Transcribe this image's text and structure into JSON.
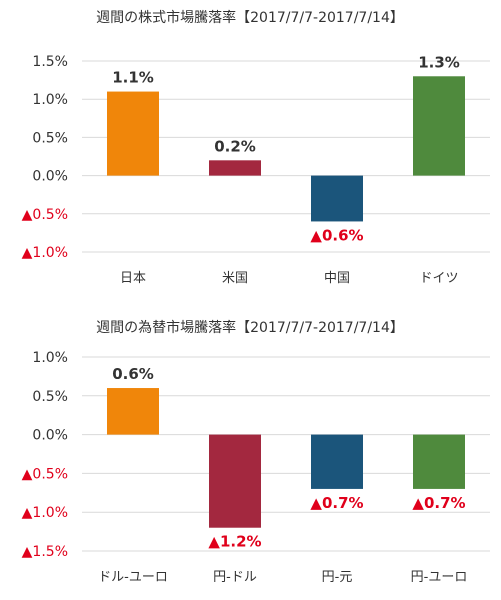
{
  "chart_data": [
    {
      "type": "bar",
      "title": "週間の株式市場騰落率【2017/7/7-2017/7/14】",
      "categories": [
        "日本",
        "米国",
        "中国",
        "ドイツ"
      ],
      "values": [
        1.1,
        0.2,
        -0.6,
        1.3
      ],
      "data_labels": [
        "1.1%",
        "0.2%",
        "▲0.6%",
        "1.3%"
      ],
      "bar_colors": [
        "#f0860a",
        "#a3283f",
        "#1b557b",
        "#4f8a3d"
      ],
      "ylim": [
        -1.0,
        1.5
      ],
      "ticks": [
        1.5,
        1.0,
        0.5,
        0.0,
        -0.5,
        -1.0
      ],
      "tick_labels": [
        "1.5%",
        "1.0%",
        "0.5%",
        "0.0%",
        "▲0.5%",
        "▲1.0%"
      ],
      "grid": true
    },
    {
      "type": "bar",
      "title": "週間の為替市場騰落率【2017/7/7-2017/7/14】",
      "categories": [
        "ドル-ユーロ",
        "円-ドル",
        "円-元",
        "円-ユーロ"
      ],
      "values": [
        0.6,
        -1.2,
        -0.7,
        -0.7
      ],
      "data_labels": [
        "0.6%",
        "▲1.2%",
        "▲0.7%",
        "▲0.7%"
      ],
      "bar_colors": [
        "#f0860a",
        "#a3283f",
        "#1b557b",
        "#4f8a3d"
      ],
      "ylim": [
        -1.5,
        1.0
      ],
      "ticks": [
        1.0,
        0.5,
        0.0,
        -0.5,
        -1.0,
        -1.5
      ],
      "tick_labels": [
        "1.0%",
        "0.5%",
        "0.0%",
        "▲0.5%",
        "▲1.0%",
        "▲1.5%"
      ],
      "grid": true
    }
  ],
  "colors": {
    "positive_text": "#333333",
    "negative_text": "#e0001b",
    "grid": "#d9d9d9"
  }
}
